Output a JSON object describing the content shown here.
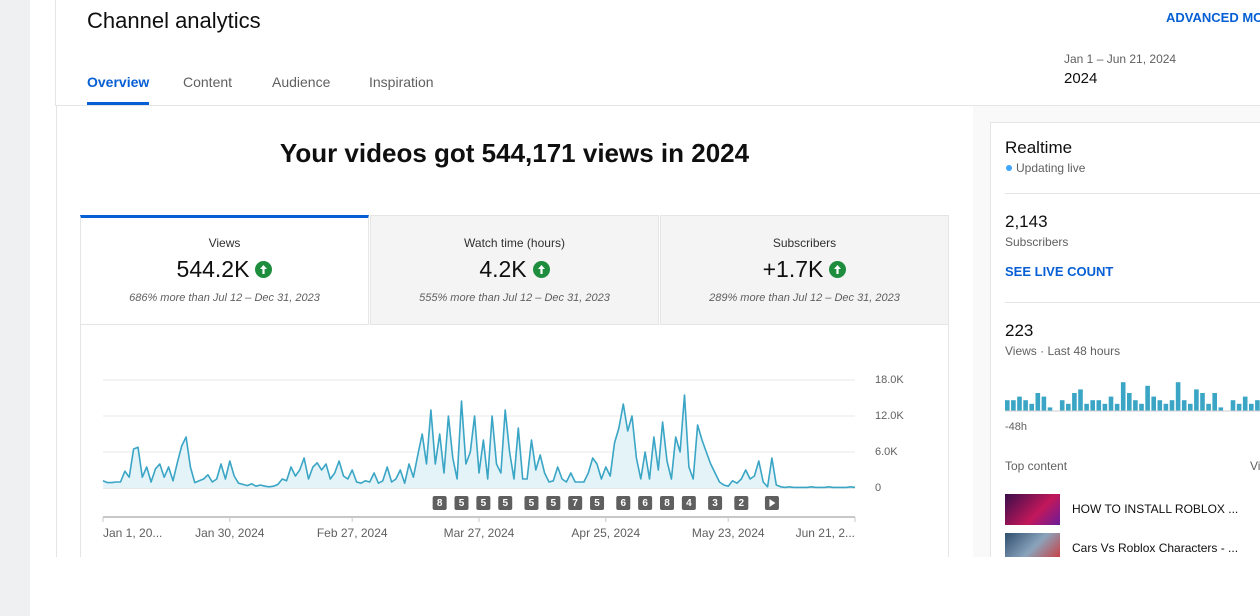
{
  "header": {
    "title": "Channel analytics",
    "action": "ADVANCED MODE",
    "tabs": [
      "Overview",
      "Content",
      "Audience",
      "Inspiration"
    ],
    "active_tab": 0,
    "date_range": {
      "label": "Jan 1 – Jun 21, 2024",
      "value": "2024"
    }
  },
  "headline": "Your videos got 544,171 views in 2024",
  "metrics": [
    {
      "name": "Views",
      "value": "544.2K",
      "comparison": "686% more than Jul 12 – Dec 31, 2023"
    },
    {
      "name": "Watch time (hours)",
      "value": "4.2K",
      "comparison": "555% more than Jul 12 – Dec 31, 2023"
    },
    {
      "name": "Subscribers",
      "value": "+1.7K",
      "comparison": "289% more than Jul 12 – Dec 31, 2023"
    }
  ],
  "chart_data": {
    "type": "line",
    "fill": true,
    "color": "#3aa5c5",
    "fill_color": "#e4f3f8",
    "categories": [
      "Jan 1, 20...",
      null,
      null,
      null,
      null,
      null,
      null,
      null,
      null,
      null,
      null,
      null,
      null,
      null,
      null,
      null,
      null,
      null,
      null,
      null,
      null,
      null,
      null,
      null,
      null,
      null,
      null,
      null,
      null,
      "Jan 30, 2024",
      null,
      null,
      null,
      null,
      null,
      null,
      null,
      null,
      null,
      null,
      null,
      null,
      null,
      null,
      null,
      null,
      null,
      null,
      null,
      null,
      null,
      null,
      null,
      null,
      null,
      null,
      null,
      "Feb 27, 2024",
      null,
      null,
      null,
      null,
      null,
      null,
      null,
      null,
      null,
      null,
      null,
      null,
      null,
      null,
      null,
      null,
      null,
      null,
      null,
      null,
      null,
      null,
      null,
      null,
      null,
      null,
      null,
      null,
      "Mar 27, 2024",
      null,
      null,
      null,
      null,
      null,
      null,
      null,
      null,
      null,
      null,
      null,
      null,
      null,
      null,
      null,
      null,
      null,
      null,
      null,
      null,
      null,
      null,
      null,
      null,
      null,
      null,
      null,
      null,
      "Apr 25, 2024",
      null,
      null,
      null,
      null,
      null,
      null,
      null,
      null,
      null,
      null,
      null,
      null,
      null,
      null,
      null,
      null,
      null,
      null,
      null,
      null,
      null,
      null,
      null,
      null,
      null,
      null,
      null,
      "May 23, 2024",
      null,
      null,
      null,
      null,
      null,
      null,
      null,
      null,
      null,
      null,
      null,
      null,
      null,
      null,
      null,
      null,
      null,
      null,
      null,
      null,
      null,
      null,
      null,
      null,
      null,
      null,
      null,
      null,
      "Jun 21, 2..."
    ],
    "values": [
      1200,
      900,
      900,
      1000,
      1000,
      2800,
      1800,
      6500,
      6800,
      1800,
      3500,
      1000,
      3200,
      4000,
      1800,
      3500,
      1200,
      4200,
      7000,
      8500,
      3500,
      900,
      1200,
      1500,
      2200,
      1000,
      1500,
      4000,
      1500,
      4500,
      2000,
      800,
      600,
      400,
      700,
      300,
      500,
      300,
      200,
      300,
      600,
      1500,
      1200,
      3500,
      2000,
      3000,
      5000,
      1500,
      3500,
      4200,
      3000,
      4000,
      1500,
      2500,
      4500,
      2000,
      1500,
      3000,
      1000,
      800,
      1200,
      1000,
      2500,
      800,
      1200,
      3500,
      1000,
      1500,
      3000,
      800,
      4000,
      1800,
      5500,
      9000,
      4000,
      13000,
      4000,
      9000,
      2500,
      12000,
      5000,
      1500,
      14500,
      4000,
      6000,
      12000,
      2500,
      8000,
      1500,
      12000,
      4000,
      2500,
      13000,
      6000,
      1500,
      10000,
      1500,
      1500,
      8000,
      3000,
      5500,
      2500,
      1000,
      1200,
      3500,
      1500,
      1000,
      2500,
      1000,
      1000,
      1000,
      2500,
      5000,
      4000,
      1500,
      3500,
      2000,
      7500,
      10000,
      14000,
      9500,
      12000,
      5000,
      1500,
      6000,
      1500,
      8500,
      3000,
      11000,
      4500,
      1500,
      8500,
      6000,
      15500,
      3500,
      1500,
      10500,
      8000,
      6000,
      4000,
      2500,
      1000,
      500,
      300,
      1200,
      800,
      1500,
      3000,
      1500,
      2000,
      4500,
      1000,
      200,
      5000,
      500,
      200,
      100,
      200,
      100,
      100,
      100,
      100,
      200,
      100,
      100,
      100,
      200,
      100,
      100,
      100,
      100,
      200,
      100
    ],
    "ylim": [
      0,
      18000
    ],
    "yticks": [
      0,
      {
        "value": 6000,
        "label": "6.0K"
      },
      {
        "value": 12000,
        "label": "12.0K"
      },
      {
        "value": 18000,
        "label": "18.0K"
      }
    ],
    "grid": true,
    "markers": [
      {
        "index": 77,
        "label": "8"
      },
      {
        "index": 82,
        "label": "5"
      },
      {
        "index": 87,
        "label": "5"
      },
      {
        "index": 92,
        "label": "5"
      },
      {
        "index": 98,
        "label": "5"
      },
      {
        "index": 103,
        "label": "5"
      },
      {
        "index": 108,
        "label": "7"
      },
      {
        "index": 113,
        "label": "5"
      },
      {
        "index": 119,
        "label": "6"
      },
      {
        "index": 124,
        "label": "6"
      },
      {
        "index": 129,
        "label": "8"
      },
      {
        "index": 134,
        "label": "4"
      },
      {
        "index": 140,
        "label": "3"
      },
      {
        "index": 146,
        "label": "2"
      },
      {
        "index": 153,
        "icon": "play"
      }
    ]
  },
  "realtime": {
    "title": "Realtime",
    "status": "Updating live",
    "subscribers": {
      "value": "2,143",
      "label": "Subscribers",
      "action": "SEE LIVE COUNT"
    },
    "views": {
      "value": "223",
      "label": "Views · Last 48 hours",
      "bars": [
        3,
        3,
        4,
        3,
        2,
        5,
        4,
        1,
        0,
        3,
        2,
        5,
        6,
        2,
        3,
        3,
        2,
        4,
        2,
        8,
        5,
        3,
        2,
        7,
        4,
        3,
        2,
        3,
        8,
        3,
        2,
        6,
        5,
        2,
        5,
        1,
        0,
        3,
        2,
        4,
        2,
        3
      ],
      "bar_color": "#3aa5c5",
      "start_label": "-48h"
    },
    "top_content": {
      "title": "Top content",
      "column": "Views",
      "items": [
        "HOW TO INSTALL ROBLOX ...",
        "Cars Vs Roblox Characters - ..."
      ]
    }
  }
}
